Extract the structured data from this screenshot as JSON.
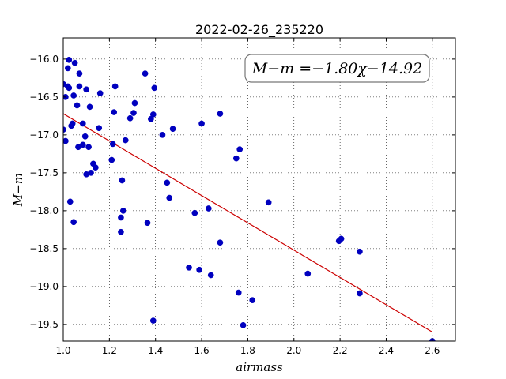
{
  "chart_data": {
    "type": "scatter",
    "title": "2022-02-26_235220",
    "xlabel": "airmass",
    "ylabel": "M−m",
    "xlim": [
      1.0,
      2.7
    ],
    "ylim": [
      -19.72,
      -15.72
    ],
    "y_inverted": false,
    "xticks": [
      "1.0",
      "1.2",
      "1.4",
      "1.6",
      "1.8",
      "2.0",
      "2.2",
      "2.4",
      "2.6"
    ],
    "xtick_values": [
      1.0,
      1.2,
      1.4,
      1.6,
      1.8,
      2.0,
      2.2,
      2.4,
      2.6
    ],
    "yticks": [
      "−16.0",
      "−16.5",
      "−17.0",
      "−17.5",
      "−18.0",
      "−18.5",
      "−19.0",
      "−19.5"
    ],
    "ytick_values": [
      -16.0,
      -16.5,
      -17.0,
      -17.5,
      -18.0,
      -18.5,
      -19.0,
      -19.5
    ],
    "grid": true,
    "annotation": "M−m =−1.80χ−14.92",
    "point_color": "#0000bf",
    "fit_color": "#cc0000",
    "fit_line": {
      "slope": -1.8,
      "intercept": -14.92,
      "x_range": [
        1.0,
        2.6
      ]
    },
    "points": [
      [
        1.0,
        -16.33
      ],
      [
        1.0,
        -16.93
      ],
      [
        1.01,
        -17.08
      ],
      [
        1.01,
        -16.5
      ],
      [
        1.02,
        -16.36
      ],
      [
        1.02,
        -16.12
      ],
      [
        1.025,
        -16.01
      ],
      [
        1.025,
        -16.38
      ],
      [
        1.03,
        -17.88
      ],
      [
        1.035,
        -16.88
      ],
      [
        1.04,
        -16.85
      ],
      [
        1.045,
        -16.48
      ],
      [
        1.045,
        -18.15
      ],
      [
        1.05,
        -16.05
      ],
      [
        1.06,
        -16.61
      ],
      [
        1.065,
        -17.16
      ],
      [
        1.07,
        -16.19
      ],
      [
        1.07,
        -16.36
      ],
      [
        1.085,
        -16.85
      ],
      [
        1.085,
        -17.13
      ],
      [
        1.095,
        -17.02
      ],
      [
        1.1,
        -16.4
      ],
      [
        1.1,
        -17.52
      ],
      [
        1.11,
        -17.16
      ],
      [
        1.115,
        -16.63
      ],
      [
        1.12,
        -17.5
      ],
      [
        1.13,
        -17.38
      ],
      [
        1.14,
        -17.43
      ],
      [
        1.155,
        -16.91
      ],
      [
        1.16,
        -16.45
      ],
      [
        1.21,
        -17.33
      ],
      [
        1.215,
        -17.12
      ],
      [
        1.22,
        -16.7
      ],
      [
        1.225,
        -16.36
      ],
      [
        1.25,
        -18.09
      ],
      [
        1.25,
        -18.28
      ],
      [
        1.255,
        -17.6
      ],
      [
        1.26,
        -18.0
      ],
      [
        1.27,
        -17.07
      ],
      [
        1.29,
        -16.78
      ],
      [
        1.305,
        -16.71
      ],
      [
        1.31,
        -16.58
      ],
      [
        1.355,
        -16.19
      ],
      [
        1.365,
        -18.16
      ],
      [
        1.38,
        -16.79
      ],
      [
        1.39,
        -19.45
      ],
      [
        1.39,
        -16.73
      ],
      [
        1.395,
        -16.38
      ],
      [
        1.43,
        -17.0
      ],
      [
        1.45,
        -17.63
      ],
      [
        1.46,
        -17.83
      ],
      [
        1.475,
        -16.92
      ],
      [
        1.57,
        -18.03
      ],
      [
        1.6,
        -16.85
      ],
      [
        1.545,
        -18.75
      ],
      [
        1.59,
        -18.78
      ],
      [
        1.63,
        -17.97
      ],
      [
        1.64,
        -18.85
      ],
      [
        1.68,
        -16.72
      ],
      [
        1.68,
        -18.42
      ],
      [
        1.75,
        -17.31
      ],
      [
        1.76,
        -19.08
      ],
      [
        1.765,
        -17.19
      ],
      [
        1.78,
        -19.51
      ],
      [
        1.82,
        -19.18
      ],
      [
        1.89,
        -17.89
      ],
      [
        2.06,
        -18.83
      ],
      [
        2.195,
        -18.4
      ],
      [
        2.205,
        -18.37
      ],
      [
        2.285,
        -19.09
      ],
      [
        2.285,
        -18.54
      ],
      [
        2.6,
        -19.72
      ]
    ]
  }
}
